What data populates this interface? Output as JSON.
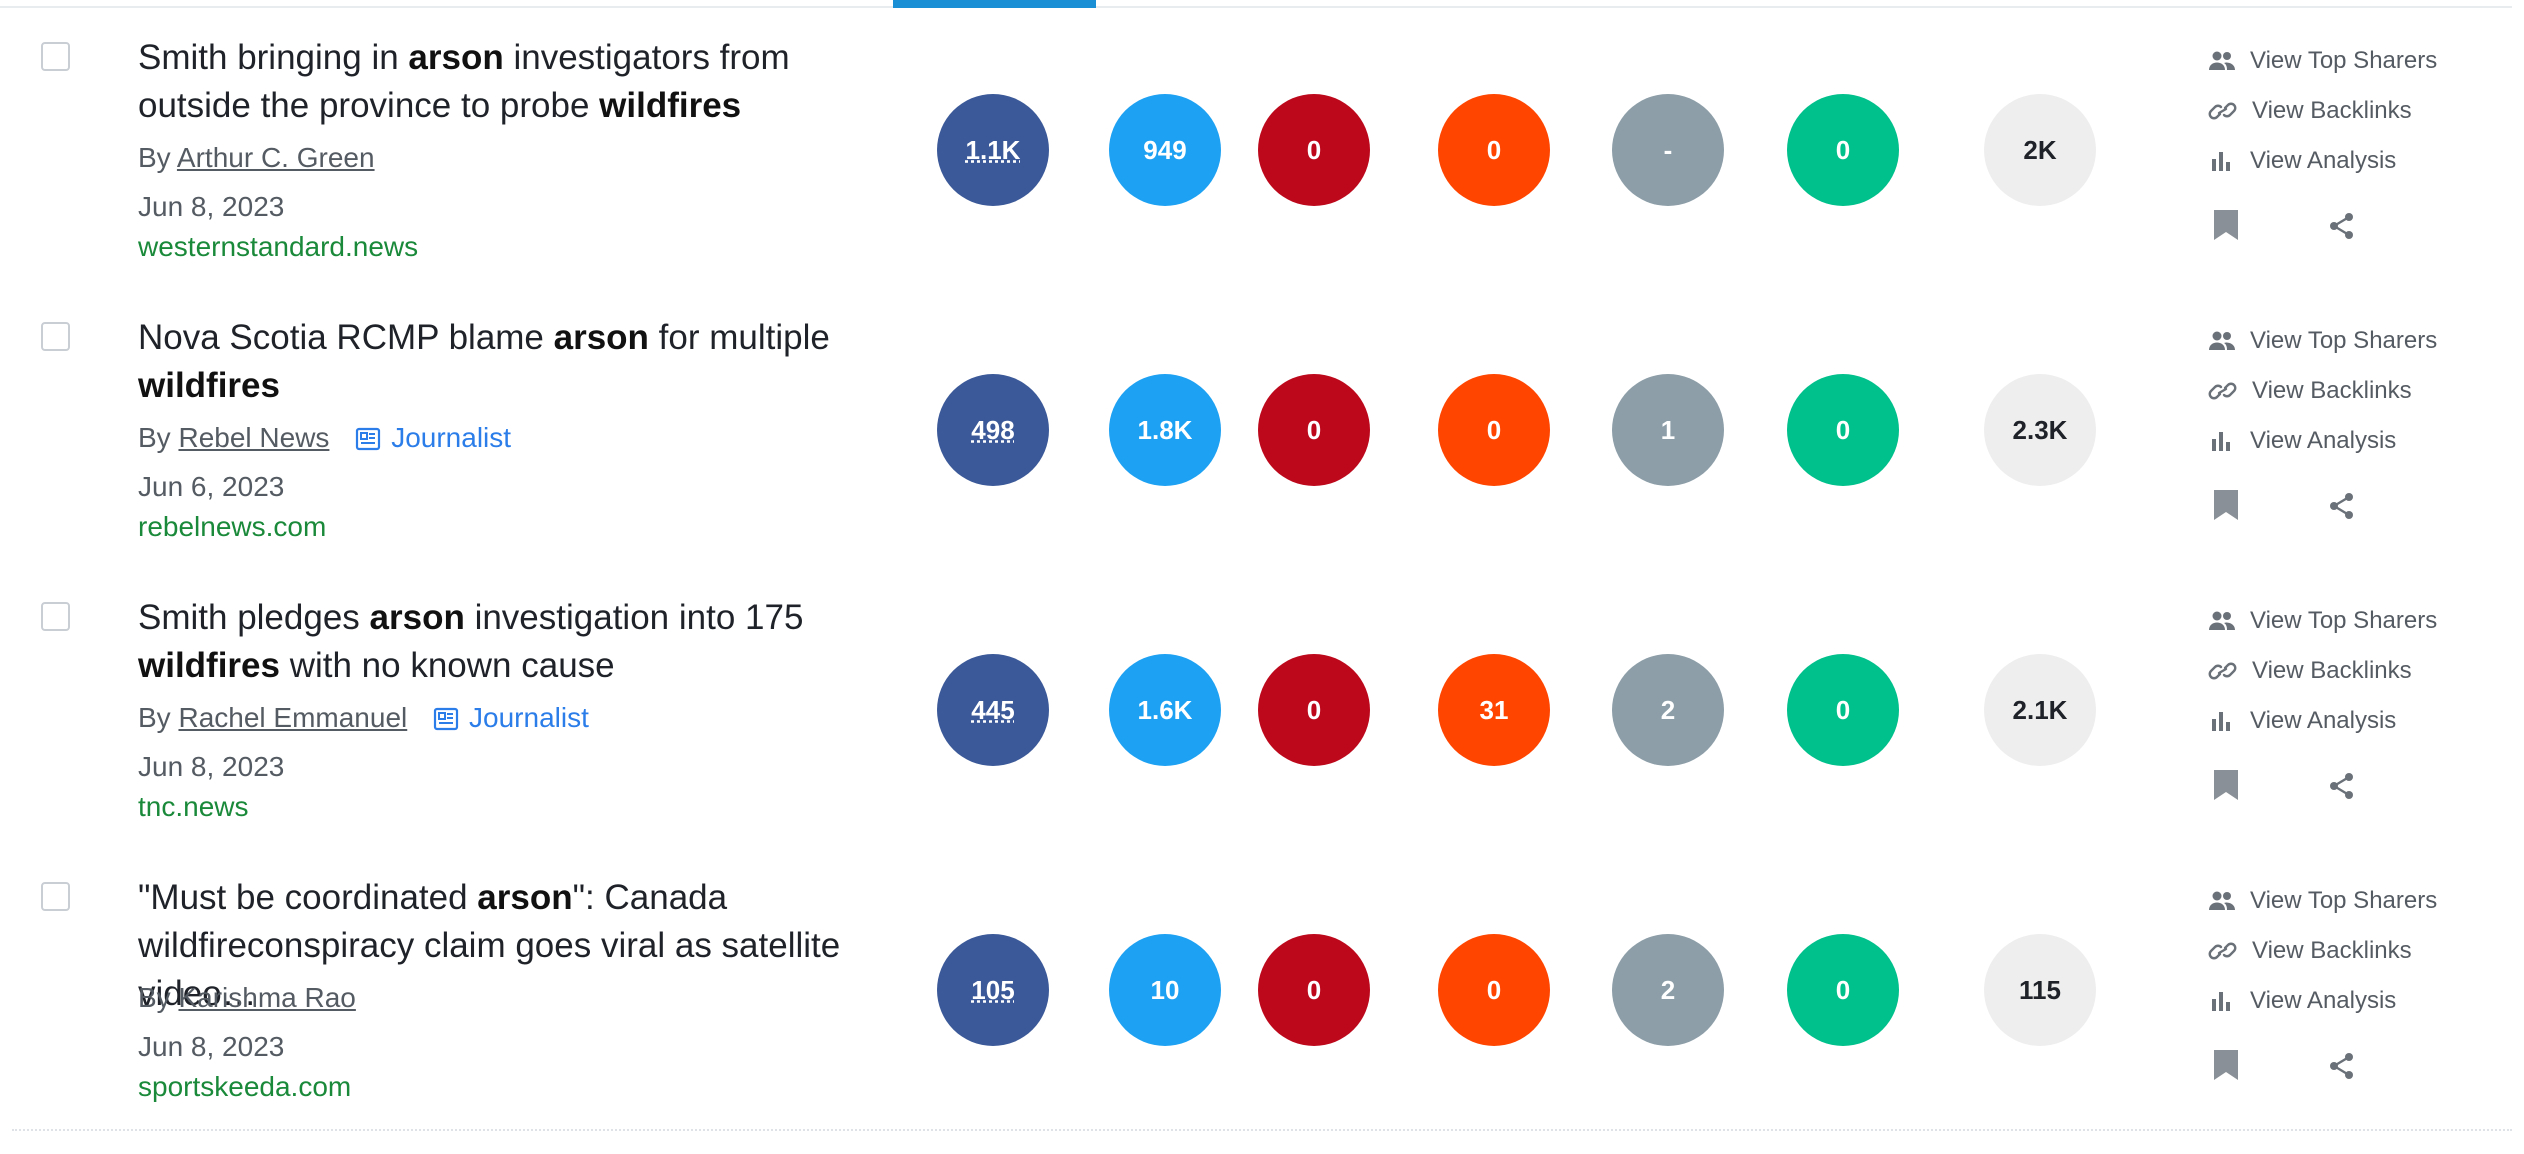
{
  "actions": {
    "top_sharers": "View Top Sharers",
    "backlinks": "View Backlinks",
    "analysis": "View Analysis"
  },
  "colors": {
    "facebook": "#3b5998",
    "twitter": "#1da1f2",
    "pinterest": "#bd081c",
    "reddit": "#ff4500",
    "evergreen": "#8d9ea8",
    "links": "#00c08b",
    "total": "#eeeeee",
    "domain_green": "#1a8a3a",
    "journalist_blue": "#2b7de9",
    "active_tab": "#1a8fd6"
  },
  "articles": [
    {
      "title_parts": [
        "Smith bringing in ",
        "arson",
        " investigators from",
        "outside the province to probe ",
        "wildfires",
        ""
      ],
      "by_prefix": "By",
      "author": "Arthur C. Green",
      "journalist": "",
      "date": "Jun 8, 2023",
      "domain": "westernstandard.news",
      "metrics": {
        "facebook": "1.1K",
        "twitter": "949",
        "pinterest": "0",
        "reddit": "0",
        "evergreen": "-",
        "links": "0",
        "total": "2K"
      }
    },
    {
      "title_parts": [
        "Nova Scotia RCMP blame ",
        "arson",
        " for multiple",
        "",
        "wildfires",
        ""
      ],
      "by_prefix": "By",
      "author": "Rebel News",
      "journalist": "Journalist",
      "date": "Jun 6, 2023",
      "domain": "rebelnews.com",
      "metrics": {
        "facebook": "498",
        "twitter": "1.8K",
        "pinterest": "0",
        "reddit": "0",
        "evergreen": "1",
        "links": "0",
        "total": "2.3K"
      }
    },
    {
      "title_parts": [
        "Smith pledges ",
        "arson",
        " investigation into 175",
        "",
        "wildfires",
        " with no known cause"
      ],
      "by_prefix": "By",
      "author": "Rachel Emmanuel",
      "journalist": "Journalist",
      "date": "Jun 8, 2023",
      "domain": "tnc.news",
      "metrics": {
        "facebook": "445",
        "twitter": "1.6K",
        "pinterest": "0",
        "reddit": "31",
        "evergreen": "2",
        "links": "0",
        "total": "2.1K"
      }
    },
    {
      "title_parts": [
        "\"Must be coordinated ",
        "arson",
        "\": Canada ",
        "wildfire",
        "",
        "conspiracy claim goes viral as satellite video…"
      ],
      "by_prefix": "By",
      "author": "Karishma Rao",
      "journalist": "",
      "date": "Jun 8, 2023",
      "domain": "sportskeeda.com",
      "metrics": {
        "facebook": "105",
        "twitter": "10",
        "pinterest": "0",
        "reddit": "0",
        "evergreen": "2",
        "links": "0",
        "total": "115"
      }
    }
  ]
}
